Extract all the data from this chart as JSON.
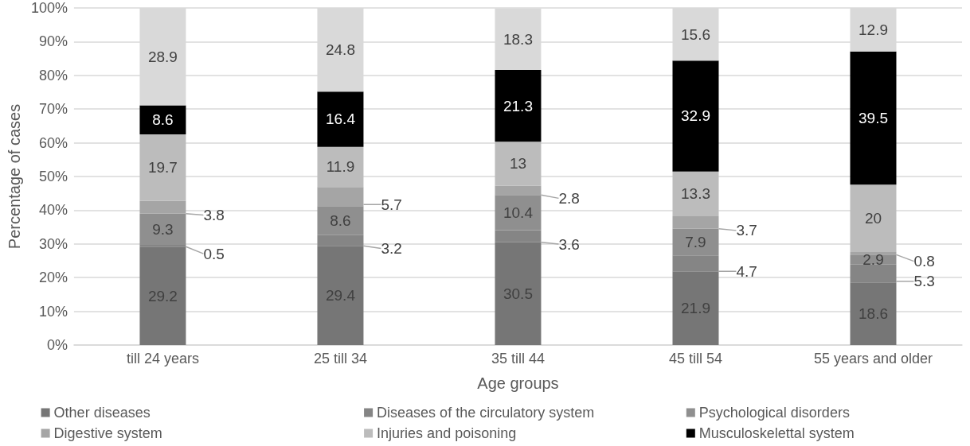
{
  "chart_data": {
    "type": "bar",
    "stacked": true,
    "xlabel": "Age groups",
    "ylabel": "Percentage of cases",
    "categories": [
      "till 24 years",
      "25 till 34",
      "35 till 44",
      "45 till 54",
      "55 years and older"
    ],
    "series": [
      {
        "name": "Other diseases",
        "color": "#767676",
        "values": [
          29.2,
          29.4,
          30.5,
          21.9,
          18.6
        ]
      },
      {
        "name": "Diseases of the circulatory system",
        "color": "#858585",
        "values": [
          0.5,
          3.2,
          3.6,
          4.7,
          5.3
        ]
      },
      {
        "name": "Psychological disorders",
        "color": "#8f8f8f",
        "values": [
          9.3,
          8.6,
          10.4,
          7.9,
          2.9
        ]
      },
      {
        "name": "Digestive system",
        "color": "#a5a5a5",
        "values": [
          3.8,
          5.7,
          2.8,
          3.7,
          0.8
        ]
      },
      {
        "name": "Injuries and poisoning",
        "color": "#bcbcbc",
        "values": [
          19.7,
          11.9,
          13,
          13.3,
          20
        ]
      },
      {
        "name": "Musculoskelettal system",
        "color": "#000000",
        "values": [
          8.6,
          16.4,
          21.3,
          32.9,
          39.5
        ]
      },
      {
        "color": "#d9d9d9",
        "values": [
          28.9,
          24.8,
          18.3,
          15.6,
          12.9
        ]
      }
    ],
    "ylim": [
      0,
      100
    ],
    "yticks": [
      {
        "value": 0,
        "label": "0%"
      },
      {
        "value": 10,
        "label": "10%"
      },
      {
        "value": 20,
        "label": "20%"
      },
      {
        "value": 30,
        "label": "30%"
      },
      {
        "value": 40,
        "label": "40%"
      },
      {
        "value": 50,
        "label": "50%"
      },
      {
        "value": 60,
        "label": "60%"
      },
      {
        "value": 70,
        "label": "70%"
      },
      {
        "value": 80,
        "label": "80%"
      },
      {
        "value": 90,
        "label": "90%"
      },
      {
        "value": 100,
        "label": "100%"
      }
    ],
    "grid": "y",
    "legend": "bottom",
    "data_labels": true
  }
}
